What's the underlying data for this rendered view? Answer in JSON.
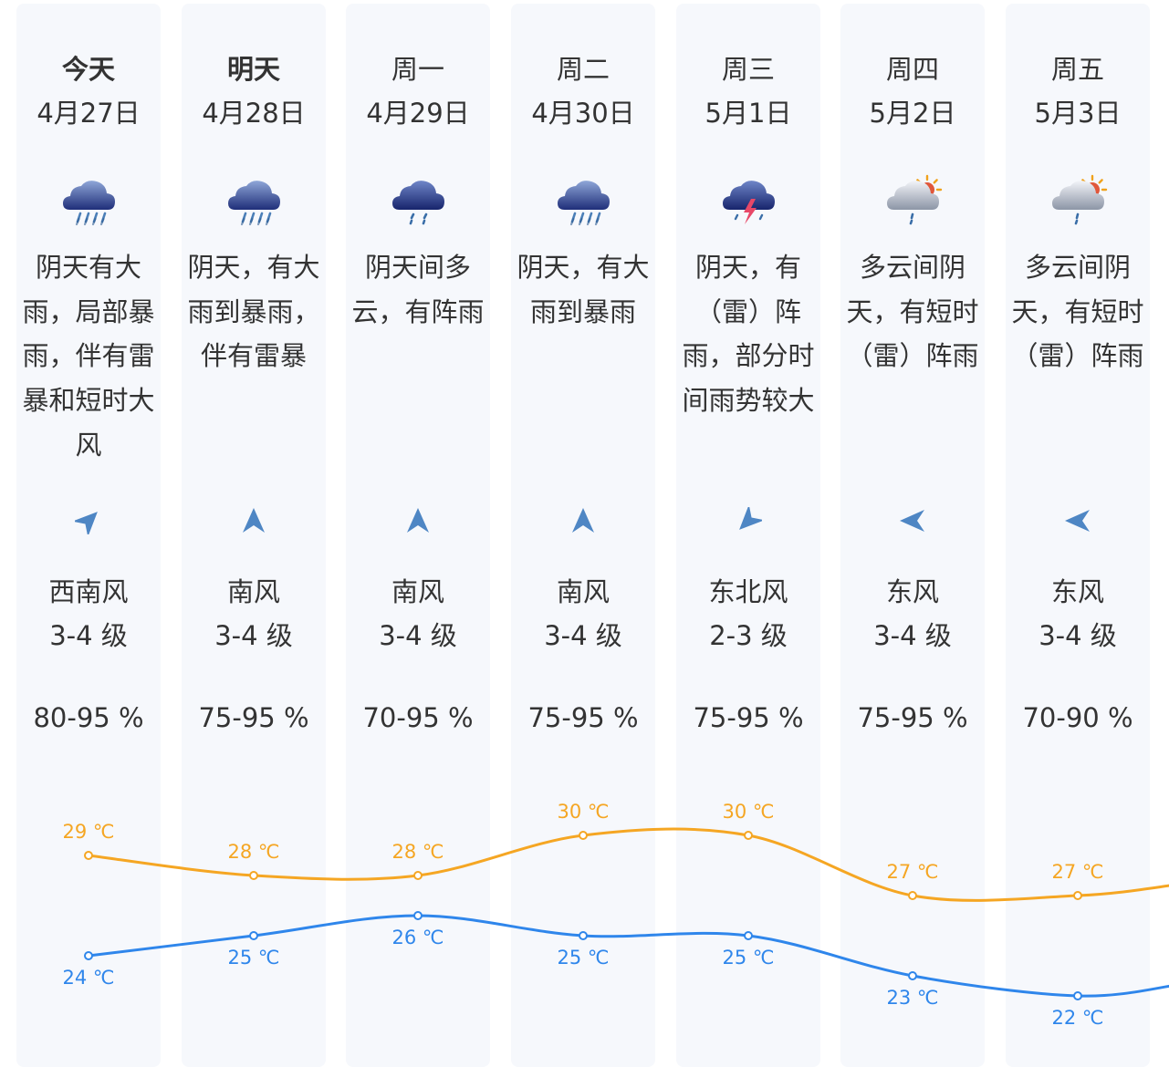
{
  "days": [
    {
      "name": "今天",
      "date": "4月27日",
      "weather": "heavy-rain",
      "icon": "heavy-rain-icon",
      "desc": "阴天有大雨，局部暴雨，伴有雷暴和短时大风",
      "wind_dir": "西南风",
      "wind_level": "3-4 级",
      "humidity": "80-95 %",
      "high": "29 ℃",
      "low": "24 ℃"
    },
    {
      "name": "明天",
      "date": "4月28日",
      "weather": "heavy-rain",
      "icon": "heavy-rain-icon",
      "desc": "阴天，有大雨到暴雨，伴有雷暴",
      "wind_dir": "南风",
      "wind_level": "3-4 级",
      "humidity": "75-95 %",
      "high": "28 ℃",
      "low": "25 ℃"
    },
    {
      "name": "周一",
      "date": "4月29日",
      "weather": "light-rain",
      "icon": "shower-icon",
      "desc": "阴天间多云，有阵雨",
      "wind_dir": "南风",
      "wind_level": "3-4 级",
      "humidity": "70-95 %",
      "high": "28 ℃",
      "low": "26 ℃"
    },
    {
      "name": "周二",
      "date": "4月30日",
      "weather": "heavy-rain",
      "icon": "heavy-rain-icon",
      "desc": "阴天，有大雨到暴雨",
      "wind_dir": "南风",
      "wind_level": "3-4 级",
      "humidity": "75-95 %",
      "high": "30 ℃",
      "low": "25 ℃"
    },
    {
      "name": "周三",
      "date": "5月1日",
      "weather": "thunder",
      "icon": "thunderstorm-icon",
      "desc": "阴天，有（雷）阵雨，部分时间雨势较大",
      "wind_dir": "东北风",
      "wind_level": "2-3 级",
      "humidity": "75-95 %",
      "high": "30 ℃",
      "low": "25 ℃"
    },
    {
      "name": "周四",
      "date": "5月2日",
      "weather": "sun-shower",
      "icon": "partly-cloudy-shower-icon",
      "desc": "多云间阴天，有短时（雷）阵雨",
      "wind_dir": "东风",
      "wind_level": "3-4 级",
      "humidity": "75-95 %",
      "high": "27 ℃",
      "low": "23 ℃"
    },
    {
      "name": "周五",
      "date": "5月3日",
      "weather": "sun-shower",
      "icon": "partly-cloudy-shower-icon",
      "desc": "多云间阴天，有短时（雷）阵雨",
      "wind_dir": "东风",
      "wind_level": "3-4 级",
      "humidity": "70-90 %",
      "high": "27 ℃",
      "low": "22 ℃"
    }
  ],
  "wind_arrows": [
    {
      "dir": "西南风",
      "rotation_deg": 45
    },
    {
      "dir": "南风",
      "rotation_deg": 0
    },
    {
      "dir": "南风",
      "rotation_deg": 0
    },
    {
      "dir": "南风",
      "rotation_deg": 0
    },
    {
      "dir": "东北风",
      "rotation_deg": 225
    },
    {
      "dir": "东风",
      "rotation_deg": 270
    },
    {
      "dir": "东风",
      "rotation_deg": 270
    }
  ],
  "chart_data": {
    "type": "line",
    "categories": [
      "4月27日",
      "4月28日",
      "4月29日",
      "4月30日",
      "5月1日",
      "5月2日",
      "5月3日"
    ],
    "series": [
      {
        "key": "high",
        "values": [
          29,
          28,
          28,
          30,
          30,
          27,
          27
        ],
        "color": "#f5a623"
      },
      {
        "key": "low",
        "values": [
          24,
          25,
          26,
          25,
          25,
          23,
          22
        ],
        "color": "#2f86eb"
      }
    ],
    "unit": "℃"
  },
  "colors": {
    "high": "#f5a623",
    "low": "#2f86eb",
    "arrow": "#4e86c4",
    "column_bg": "#f6f8fc"
  }
}
